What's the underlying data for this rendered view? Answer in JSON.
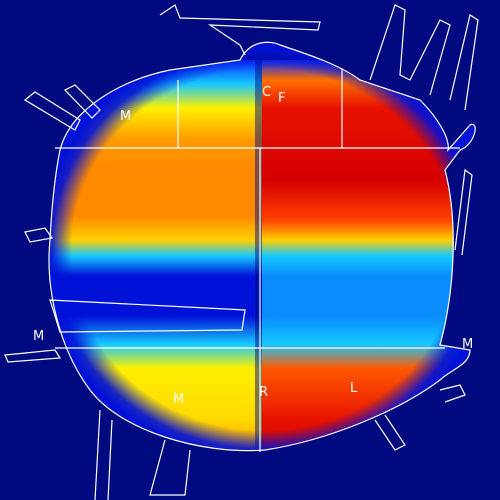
{
  "colors": {
    "background": "#000a80",
    "outline": "#ffffff",
    "deep_blue": "#0011d8",
    "blue": "#0a2cff",
    "cyan": "#16c8ff",
    "light_blue": "#0a8cff",
    "yellow": "#fff000",
    "orange": "#ff8a00",
    "orange_red": "#ff5a00",
    "red": "#e81200",
    "dark_red": "#c00000"
  },
  "labels": {
    "upper_left": "M",
    "top_c": "C",
    "top_f": "F",
    "left_side": "M",
    "lower_left": "M",
    "lower_center": "R",
    "lower_right": "L",
    "right_side": "M"
  }
}
